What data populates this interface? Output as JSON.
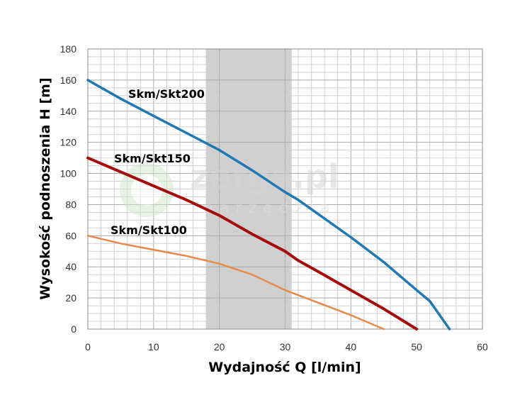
{
  "chart_data": {
    "type": "line",
    "xlabel": "Wydajność Q [l/min]",
    "ylabel": "Wysokość podnoszenia H [m]",
    "xlim": [
      0,
      60
    ],
    "ylim": [
      0,
      180
    ],
    "x_ticks": [
      "0",
      "10",
      "20",
      "30",
      "40",
      "50",
      "60"
    ],
    "y_ticks": [
      "0",
      "20",
      "40",
      "60",
      "80",
      "100",
      "120",
      "140",
      "160",
      "180"
    ],
    "grid": true,
    "legend": "inline labels next to each curve",
    "highlight_band": {
      "x_from": 18,
      "x_to": 31,
      "color": "#c8c8c8"
    },
    "series": [
      {
        "name": "Skm/Skt200",
        "color": "#1f77b4",
        "points": [
          [
            0,
            160
          ],
          [
            5,
            148
          ],
          [
            10,
            137
          ],
          [
            15,
            126
          ],
          [
            20,
            115
          ],
          [
            25,
            102
          ],
          [
            30,
            88
          ],
          [
            32,
            83
          ],
          [
            35,
            74
          ],
          [
            40,
            59
          ],
          [
            45,
            43
          ],
          [
            50,
            25
          ],
          [
            52,
            18
          ],
          [
            55,
            0
          ]
        ]
      },
      {
        "name": "Skm/Skt150",
        "color": "#a50d0d",
        "points": [
          [
            0,
            110
          ],
          [
            5,
            101
          ],
          [
            10,
            92
          ],
          [
            15,
            83
          ],
          [
            20,
            73
          ],
          [
            25,
            61
          ],
          [
            30,
            50
          ],
          [
            32,
            44
          ],
          [
            35,
            37
          ],
          [
            40,
            25
          ],
          [
            45,
            13
          ],
          [
            50,
            0
          ]
        ]
      },
      {
        "name": "Skm/Skt100",
        "color": "#e68a4c",
        "points": [
          [
            0,
            60
          ],
          [
            5,
            55
          ],
          [
            10,
            51
          ],
          [
            15,
            47
          ],
          [
            20,
            42
          ],
          [
            25,
            35
          ],
          [
            30,
            25
          ],
          [
            35,
            17
          ],
          [
            40,
            9
          ],
          [
            45,
            0
          ]
        ]
      }
    ]
  },
  "watermark": {
    "brand": "zerga.pl",
    "tagline": "narzędzia"
  }
}
